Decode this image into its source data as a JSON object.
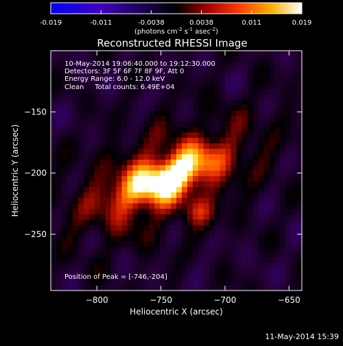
{
  "chart_data": {
    "type": "heatmap",
    "title": "Reconstructed RHESSI Image",
    "xlabel": "Heliocentric X (arcsec)",
    "ylabel": "Heliocentric Y (arcsec)",
    "xlim": [
      -836,
      -640
    ],
    "ylim": [
      -296,
      -100
    ],
    "xticks": [
      -800,
      -750,
      -700,
      -650
    ],
    "yticks": [
      -150,
      -200,
      -250
    ],
    "colorbar": {
      "ticks": [
        "-0.019",
        "-0.011",
        "-0.0038",
        "0.0038",
        "0.011",
        "0.019"
      ],
      "range": [
        -0.019,
        0.019
      ],
      "unit_base": "(photons cm",
      "unit_exp1": "-2",
      "unit_mid": " s",
      "unit_exp2": "-1",
      "unit_mid2": " asec",
      "unit_exp3": "-2",
      "unit_end": ")"
    },
    "annotations": [
      "10-May-2014 19:06:40.000 to 19:12:30.000",
      "Detectors: 3F 5F 6F 7F 8F 9F, Att 0",
      "Energy Range: 6.0 - 12.0 keV",
      "Clean     Total counts: 6.49E+04"
    ],
    "peak_label": "Position of Peak = [-746,-204]",
    "peak": [
      -746,
      -204
    ],
    "source": {
      "center": [
        -746,
        -204
      ],
      "sigma_major": 28,
      "sigma_minor": 11,
      "angle_deg": 25
    },
    "colormap": "red-temperature-blue-negative"
  },
  "footer": {
    "timestamp": "11-May-2014 15:39"
  }
}
